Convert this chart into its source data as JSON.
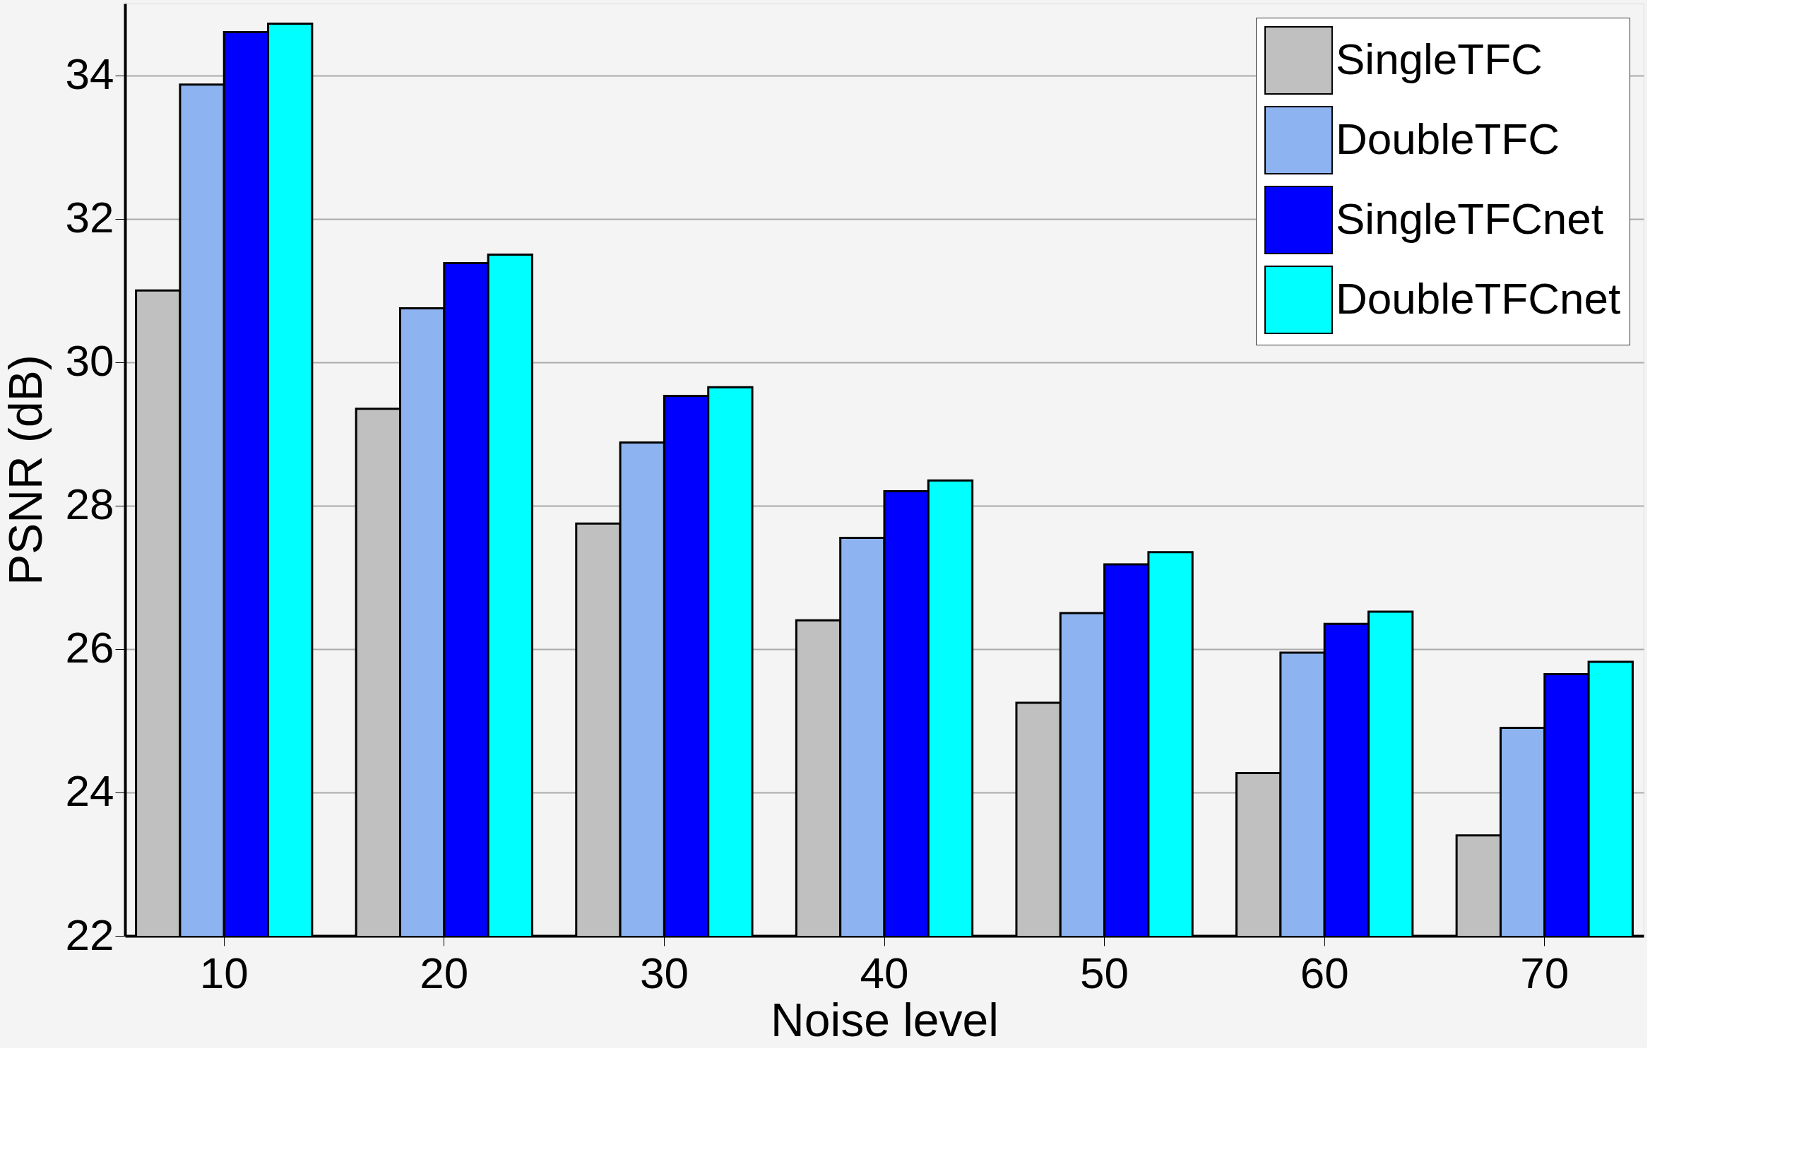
{
  "chart_data": {
    "type": "bar",
    "xlabel": "Noise level",
    "ylabel": "PSNR (dB)",
    "categories": [
      "10",
      "20",
      "30",
      "40",
      "50",
      "60",
      "70"
    ],
    "series": [
      {
        "name": "SingleTFC",
        "color": "#c0c0c0",
        "values": [
          31.0,
          29.35,
          27.75,
          26.4,
          25.25,
          24.27,
          23.4
        ]
      },
      {
        "name": "DoubleTFC",
        "color": "#8db4f0",
        "values": [
          33.87,
          30.75,
          28.88,
          27.55,
          26.5,
          25.95,
          24.9
        ]
      },
      {
        "name": "SingleTFCnet",
        "color": "#0000ff",
        "values": [
          34.6,
          31.38,
          29.53,
          28.2,
          27.18,
          26.35,
          25.65
        ]
      },
      {
        "name": "DoubleTFCnet",
        "color": "#00ffff",
        "values": [
          34.72,
          31.5,
          29.65,
          28.35,
          27.35,
          26.52,
          25.82
        ]
      }
    ],
    "ylim": [
      22,
      35
    ],
    "yticks": [
      22,
      24,
      26,
      28,
      30,
      32,
      34
    ],
    "grid": "y",
    "legend": "top right"
  }
}
